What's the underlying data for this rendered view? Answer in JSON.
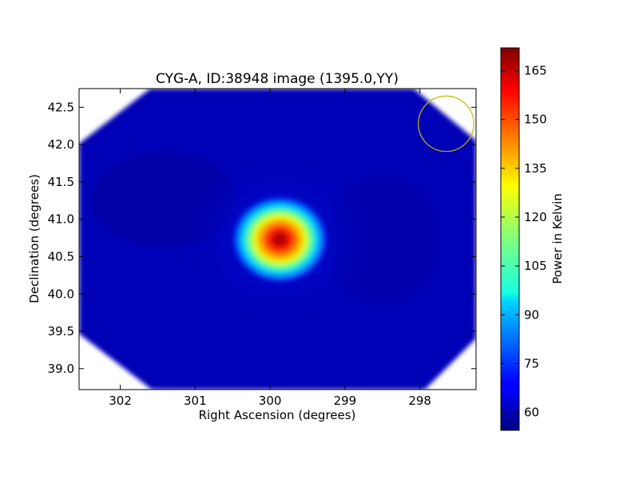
{
  "chart_data": {
    "type": "heatmap",
    "title": "CYG-A, ID:38948 image (1395.0,YY)",
    "xlabel": "Right Ascension (degrees)",
    "ylabel": "Declination (degrees)",
    "colorbar_label": "Power in Kelvin",
    "colormap": "jet",
    "x_axis_inverted": true,
    "xlim": [
      302.55,
      297.25
    ],
    "ylim": [
      38.72,
      42.75
    ],
    "xticks": [
      302,
      301,
      300,
      299,
      298
    ],
    "yticks": [
      39.0,
      39.5,
      40.0,
      40.5,
      41.0,
      41.5,
      42.0,
      42.5
    ],
    "ytick_labels": [
      "39.0",
      "39.5",
      "40.0",
      "40.5",
      "41.0",
      "41.5",
      "42.0",
      "42.5"
    ],
    "clim": [
      54.5,
      172
    ],
    "colorbar_ticks": [
      60,
      75,
      90,
      105,
      120,
      135,
      150,
      165
    ],
    "background_level": 58,
    "source": {
      "ra": 299.87,
      "dec": 40.73,
      "peak_value": 170
    },
    "beam_circle": {
      "ra": 297.65,
      "dec": 42.28,
      "radius_deg": 0.37,
      "color": "#bfbf00"
    },
    "coverage_shape": "octagon with blank corners",
    "grid": false,
    "legend": "none"
  }
}
